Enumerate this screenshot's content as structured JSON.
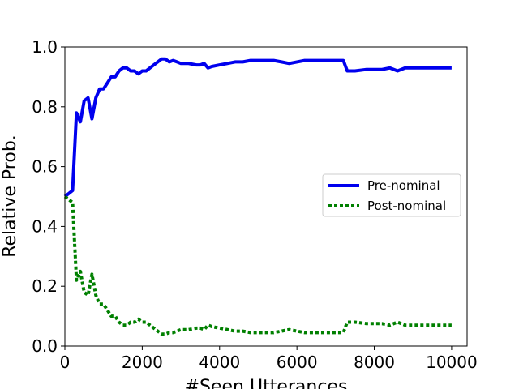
{
  "chart_data": {
    "type": "line",
    "xlabel": "#Seen Utterances",
    "ylabel": "Relative Prob.",
    "xlim": [
      0,
      10400
    ],
    "ylim": [
      0.0,
      1.0
    ],
    "xticks": [
      0,
      2000,
      4000,
      6000,
      8000,
      10000
    ],
    "xtick_labels": [
      "0",
      "2000",
      "4000",
      "6000",
      "8000",
      "10000"
    ],
    "yticks": [
      0.0,
      0.2,
      0.4,
      0.6,
      0.8,
      1.0
    ],
    "ytick_labels": [
      "0.0",
      "0.2",
      "0.4",
      "0.6",
      "0.8",
      "1.0"
    ],
    "grid": false,
    "legend_position": "center-right",
    "series": [
      {
        "name": "Pre-nominal",
        "color": "#0000ee",
        "style": "solid",
        "x": [
          0,
          100,
          200,
          300,
          400,
          500,
          600,
          700,
          800,
          900,
          1000,
          1100,
          1200,
          1300,
          1400,
          1500,
          1600,
          1700,
          1800,
          1900,
          2000,
          2100,
          2200,
          2300,
          2400,
          2500,
          2600,
          2700,
          2800,
          2900,
          3000,
          3200,
          3400,
          3500,
          3600,
          3700,
          3800,
          4000,
          4200,
          4400,
          4600,
          4800,
          5000,
          5200,
          5400,
          5600,
          5800,
          6000,
          6200,
          6400,
          6600,
          6800,
          7000,
          7200,
          7300,
          7500,
          7800,
          8000,
          8200,
          8400,
          8600,
          8800,
          9000,
          9200,
          9400,
          9600,
          9800,
          10000
        ],
        "y": [
          0.5,
          0.51,
          0.52,
          0.78,
          0.75,
          0.82,
          0.83,
          0.76,
          0.83,
          0.86,
          0.86,
          0.88,
          0.9,
          0.9,
          0.92,
          0.93,
          0.93,
          0.92,
          0.92,
          0.91,
          0.92,
          0.92,
          0.93,
          0.94,
          0.95,
          0.96,
          0.96,
          0.95,
          0.955,
          0.95,
          0.945,
          0.945,
          0.94,
          0.94,
          0.945,
          0.93,
          0.935,
          0.94,
          0.945,
          0.95,
          0.95,
          0.955,
          0.955,
          0.955,
          0.955,
          0.95,
          0.945,
          0.95,
          0.955,
          0.955,
          0.955,
          0.955,
          0.955,
          0.955,
          0.92,
          0.92,
          0.925,
          0.925,
          0.925,
          0.93,
          0.92,
          0.93,
          0.93,
          0.93,
          0.93,
          0.93,
          0.93,
          0.93
        ]
      },
      {
        "name": "Post-nominal",
        "color": "#008000",
        "style": "dotted",
        "x": [
          0,
          100,
          200,
          300,
          400,
          500,
          600,
          700,
          800,
          900,
          1000,
          1100,
          1200,
          1300,
          1400,
          1500,
          1600,
          1700,
          1800,
          1900,
          2000,
          2100,
          2200,
          2300,
          2400,
          2500,
          2600,
          2700,
          2800,
          2900,
          3000,
          3200,
          3400,
          3500,
          3600,
          3700,
          3800,
          4000,
          4200,
          4400,
          4600,
          4800,
          5000,
          5200,
          5400,
          5600,
          5800,
          6000,
          6200,
          6400,
          6600,
          6800,
          7000,
          7200,
          7300,
          7500,
          7800,
          8000,
          8200,
          8400,
          8600,
          8800,
          9000,
          9200,
          9400,
          9600,
          9800,
          10000
        ],
        "y": [
          0.5,
          0.49,
          0.48,
          0.22,
          0.25,
          0.18,
          0.17,
          0.24,
          0.17,
          0.14,
          0.14,
          0.12,
          0.1,
          0.1,
          0.08,
          0.07,
          0.07,
          0.08,
          0.08,
          0.09,
          0.08,
          0.08,
          0.07,
          0.06,
          0.05,
          0.04,
          0.04,
          0.045,
          0.045,
          0.05,
          0.055,
          0.055,
          0.06,
          0.06,
          0.055,
          0.07,
          0.065,
          0.06,
          0.055,
          0.05,
          0.05,
          0.045,
          0.045,
          0.045,
          0.045,
          0.05,
          0.055,
          0.05,
          0.045,
          0.045,
          0.045,
          0.045,
          0.045,
          0.045,
          0.08,
          0.08,
          0.075,
          0.075,
          0.075,
          0.07,
          0.08,
          0.07,
          0.07,
          0.07,
          0.07,
          0.07,
          0.07,
          0.07
        ]
      }
    ]
  }
}
